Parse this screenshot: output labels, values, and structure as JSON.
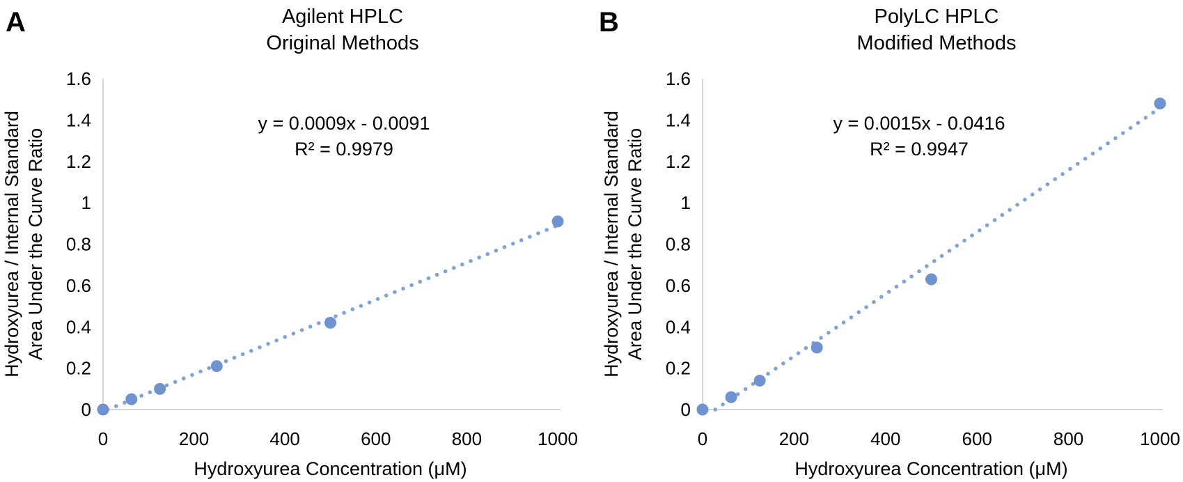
{
  "figure_name": "HPLC hydroxyurea calibration curves",
  "chart_data": [
    {
      "type": "scatter",
      "panel_label": "A",
      "title_lines": [
        "Agilent HPLC",
        "Original Methods"
      ],
      "x": [
        0,
        62.5,
        125,
        250,
        500,
        1000
      ],
      "y": [
        0.0,
        0.05,
        0.1,
        0.21,
        0.42,
        0.91
      ],
      "trendline": {
        "kind": "linear",
        "slope": 0.0009,
        "intercept": -0.0091,
        "equation_label": "y = 0.0009x - 0.0091",
        "r2_label": "R² = 0.9979"
      },
      "xlabel": "Hydroxyurea Concentration (μM)",
      "ylabel_lines": [
        "Hydroxyurea / Internal Standard",
        "Area Under the Curve Ratio"
      ],
      "xlim": [
        0,
        1000
      ],
      "ylim": [
        0,
        1.6
      ],
      "x_ticks": [
        "0",
        "200",
        "400",
        "600",
        "800",
        "1000"
      ],
      "y_ticks": [
        "0",
        "0.2",
        "0.4",
        "0.6",
        "0.8",
        "1",
        "1.2",
        "1.4",
        "1.6"
      ],
      "grid": false,
      "legend": false
    },
    {
      "type": "scatter",
      "panel_label": "B",
      "title_lines": [
        "PolyLC HPLC",
        "Modified Methods"
      ],
      "x": [
        0,
        62.5,
        125,
        250,
        500,
        1000
      ],
      "y": [
        0.0,
        0.06,
        0.14,
        0.3,
        0.63,
        1.48
      ],
      "trendline": {
        "kind": "linear",
        "slope": 0.0015,
        "intercept": -0.0416,
        "equation_label": "y = 0.0015x - 0.0416",
        "r2_label": "R² = 0.9947"
      },
      "xlabel": "Hydroxyurea Concentration (μM)",
      "ylabel_lines": [
        "Hydroxyurea / Internal Standard",
        "Area Under the Curve Ratio"
      ],
      "xlim": [
        0,
        1000
      ],
      "ylim": [
        0,
        1.6
      ],
      "x_ticks": [
        "0",
        "200",
        "400",
        "600",
        "800",
        "1000"
      ],
      "y_ticks": [
        "0",
        "0.2",
        "0.4",
        "0.6",
        "0.8",
        "1",
        "1.2",
        "1.4",
        "1.6"
      ],
      "grid": false,
      "legend": false
    }
  ],
  "colors": {
    "marker": "#6F93D1",
    "trendline": "#7FA2DB",
    "axis_line": "#C8C8C8",
    "text": "#000000"
  }
}
